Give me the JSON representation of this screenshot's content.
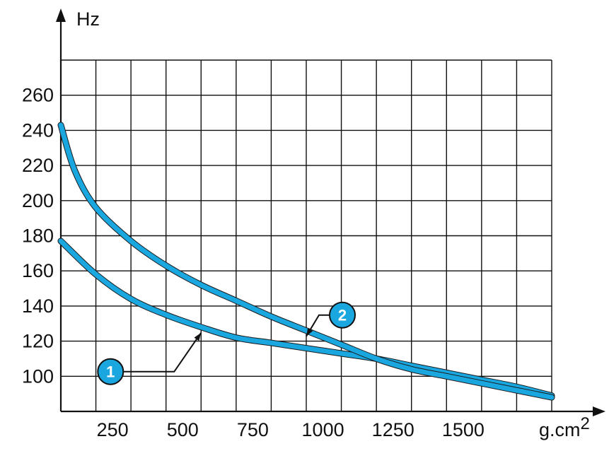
{
  "chart_data": {
    "type": "line",
    "ylabel": "Hz",
    "xlabel": "g.cm",
    "xlabel_superscript": "2",
    "x_ticks": [
      250,
      500,
      750,
      1000,
      1250,
      1500
    ],
    "y_ticks": [
      100,
      120,
      140,
      160,
      180,
      200,
      220,
      240,
      260
    ],
    "xlim": [
      0,
      1750
    ],
    "ylim": [
      80,
      280
    ],
    "grid": true,
    "x_grid_step": 125,
    "y_grid_step": 20,
    "series": [
      {
        "name": "1",
        "color": "#1aa7e0",
        "x": [
          0,
          125,
          250,
          375,
          500,
          625,
          750,
          875,
          1000,
          1125,
          1250,
          1375,
          1500,
          1625,
          1750
        ],
        "y": [
          177,
          158,
          144,
          135,
          128,
          122,
          119,
          116,
          113,
          110,
          106,
          102,
          98,
          94,
          89
        ]
      },
      {
        "name": "2",
        "color": "#1aa7e0",
        "x": [
          0,
          50,
          125,
          250,
          375,
          500,
          625,
          750,
          875,
          1000,
          1125,
          1250,
          1375,
          1500,
          1625,
          1750
        ],
        "y": [
          243,
          217,
          196,
          177,
          163,
          152,
          143,
          134,
          126,
          118,
          110,
          104,
          100,
          96,
          92,
          88
        ]
      }
    ],
    "markers": [
      {
        "label": "1",
        "series": "1",
        "anchor_x": 500
      },
      {
        "label": "2",
        "series": "2",
        "anchor_x": 875
      }
    ]
  }
}
